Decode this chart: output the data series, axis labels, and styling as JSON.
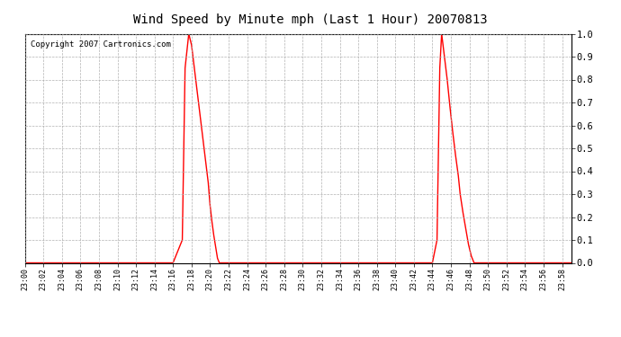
{
  "title": "Wind Speed by Minute mph (Last 1 Hour) 20070813",
  "copyright_text": "Copyright 2007 Cartronics.com",
  "background_color": "#ffffff",
  "plot_bg_color": "#ffffff",
  "line_color": "#ff0000",
  "grid_color": "#aaaaaa",
  "ylim": [
    0.0,
    1.0
  ],
  "yticks": [
    0.0,
    0.1,
    0.2,
    0.3,
    0.4,
    0.5,
    0.6,
    0.7,
    0.8,
    0.9,
    1.0
  ],
  "x_labels": [
    "23:00",
    "23:02",
    "23:04",
    "23:06",
    "23:08",
    "23:10",
    "23:12",
    "23:14",
    "23:16",
    "23:18",
    "23:20",
    "23:22",
    "23:24",
    "23:26",
    "23:28",
    "23:30",
    "23:32",
    "23:34",
    "23:36",
    "23:38",
    "23:40",
    "23:42",
    "23:44",
    "23:46",
    "23:48",
    "23:50",
    "23:52",
    "23:54",
    "23:56",
    "23:58"
  ],
  "x_values": [
    0,
    2,
    4,
    6,
    8,
    10,
    12,
    14,
    16,
    18,
    20,
    22,
    24,
    26,
    28,
    30,
    32,
    34,
    36,
    38,
    40,
    42,
    44,
    46,
    48,
    50,
    52,
    54,
    56,
    58
  ],
  "wind_data": [
    [
      0,
      0.0
    ],
    [
      1,
      0.0
    ],
    [
      2,
      0.0
    ],
    [
      3,
      0.0
    ],
    [
      4,
      0.0
    ],
    [
      5,
      0.0
    ],
    [
      6,
      0.0
    ],
    [
      7,
      0.0
    ],
    [
      8,
      0.0
    ],
    [
      9,
      0.0
    ],
    [
      10,
      0.0
    ],
    [
      11,
      0.0
    ],
    [
      12,
      0.0
    ],
    [
      13,
      0.0
    ],
    [
      14,
      0.0
    ],
    [
      15,
      0.0
    ],
    [
      16,
      0.0
    ],
    [
      17,
      0.1
    ],
    [
      17.3,
      0.85
    ],
    [
      17.7,
      1.0
    ],
    [
      18.0,
      0.95
    ],
    [
      18.3,
      0.85
    ],
    [
      18.6,
      0.75
    ],
    [
      18.9,
      0.65
    ],
    [
      19.2,
      0.55
    ],
    [
      19.5,
      0.45
    ],
    [
      19.8,
      0.35
    ],
    [
      20.0,
      0.25
    ],
    [
      20.2,
      0.18
    ],
    [
      20.4,
      0.12
    ],
    [
      20.6,
      0.07
    ],
    [
      20.8,
      0.02
    ],
    [
      21,
      0.0
    ],
    [
      22,
      0.0
    ],
    [
      23,
      0.0
    ],
    [
      24,
      0.0
    ],
    [
      25,
      0.0
    ],
    [
      26,
      0.0
    ],
    [
      27,
      0.0
    ],
    [
      28,
      0.0
    ],
    [
      29,
      0.0
    ],
    [
      30,
      0.0
    ],
    [
      31,
      0.0
    ],
    [
      32,
      0.0
    ],
    [
      33,
      0.0
    ],
    [
      34,
      0.0
    ],
    [
      35,
      0.0
    ],
    [
      36,
      0.0
    ],
    [
      37,
      0.0
    ],
    [
      38,
      0.0
    ],
    [
      39,
      0.0
    ],
    [
      40,
      0.0
    ],
    [
      41,
      0.0
    ],
    [
      42,
      0.0
    ],
    [
      43,
      0.0
    ],
    [
      44,
      0.0
    ],
    [
      44.5,
      0.1
    ],
    [
      44.8,
      0.85
    ],
    [
      45.0,
      1.0
    ],
    [
      45.3,
      0.9
    ],
    [
      45.6,
      0.8
    ],
    [
      45.9,
      0.68
    ],
    [
      46.2,
      0.57
    ],
    [
      46.5,
      0.47
    ],
    [
      46.8,
      0.38
    ],
    [
      47.0,
      0.3
    ],
    [
      47.3,
      0.22
    ],
    [
      47.6,
      0.15
    ],
    [
      47.9,
      0.08
    ],
    [
      48.2,
      0.03
    ],
    [
      48.5,
      0.0
    ],
    [
      49,
      0.0
    ],
    [
      50,
      0.0
    ],
    [
      51,
      0.0
    ],
    [
      52,
      0.0
    ],
    [
      53,
      0.0
    ],
    [
      54,
      0.0
    ],
    [
      55,
      0.0
    ],
    [
      56,
      0.0
    ],
    [
      57,
      0.0
    ],
    [
      58,
      0.0
    ],
    [
      59,
      0.0
    ]
  ]
}
